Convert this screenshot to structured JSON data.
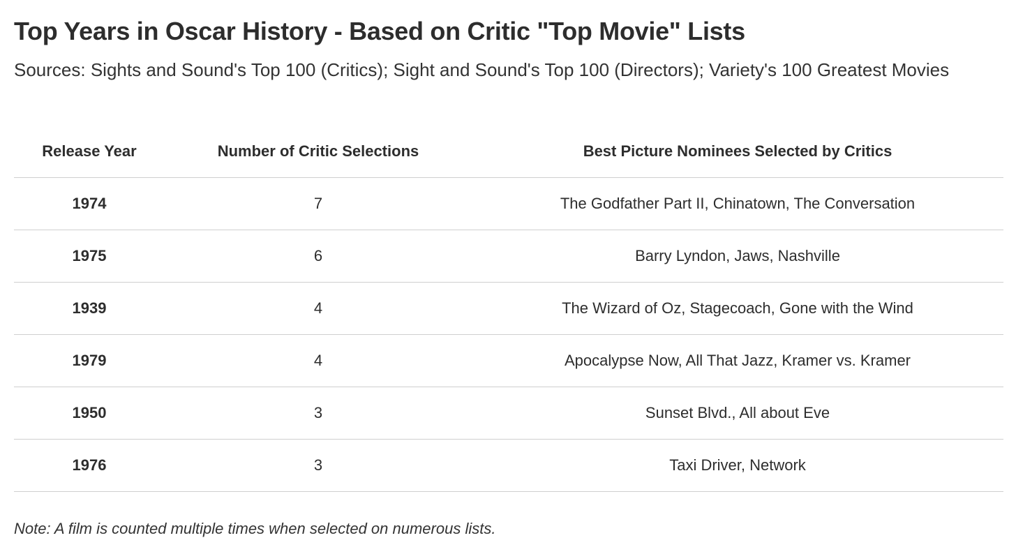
{
  "header": {
    "title": "Top Years in Oscar History - Based on Critic \"Top Movie\" Lists",
    "subtitle": "Sources: Sights and Sound's Top 100 (Critics); Sight and Sound's Top 100 (Directors); Variety's 100 Greatest Movies"
  },
  "chart_data": {
    "type": "table",
    "title": "Top Years in Oscar History - Based on Critic \"Top Movie\" Lists",
    "subtitle": "Sources: Sights and Sound's Top 100 (Critics); Sight and Sound's Top 100 (Directors); Variety's 100 Greatest Movies",
    "columns": [
      "Release Year",
      "Number of Critic Selections",
      "Best Picture Nominees Selected by Critics"
    ],
    "rows": [
      [
        "1974",
        "7",
        "The Godfather Part II, Chinatown, The Conversation"
      ],
      [
        "1975",
        "6",
        "Barry Lyndon, Jaws, Nashville"
      ],
      [
        "1939",
        "4",
        "The Wizard of Oz, Stagecoach, Gone with the Wind"
      ],
      [
        "1979",
        "4",
        "Apocalypse Now, All That Jazz, Kramer vs. Kramer"
      ],
      [
        "1950",
        "3",
        "Sunset Blvd., All about Eve"
      ],
      [
        "1976",
        "3",
        "Taxi Driver, Network"
      ]
    ],
    "note": "Note: A film is counted multiple times when selected on numerous lists."
  },
  "footer": {
    "note": "Note: A film is counted multiple times when selected on numerous lists."
  }
}
